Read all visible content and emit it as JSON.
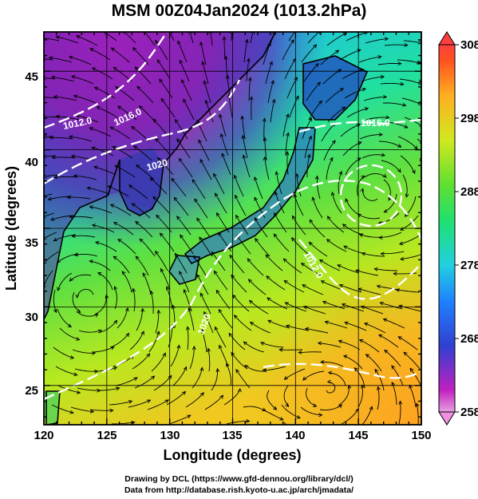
{
  "title": "MSM 00Z04Jan2024 (1013.2hPa)",
  "map": {
    "xlabel": "Longitude (degrees)",
    "ylabel": "Latitude  (degrees)",
    "xlim": [
      120,
      150
    ],
    "ylim": [
      22.5,
      47.5
    ],
    "xticks": [
      "120",
      "125",
      "130",
      "135",
      "140",
      "145",
      "150"
    ],
    "yticks": [
      "25",
      "30",
      "35",
      "40",
      "45"
    ],
    "contour_labels": [
      "1012.0",
      "1016.0",
      "1020",
      "1016.0",
      "1012.0",
      "1020"
    ]
  },
  "colorbar": {
    "ticks": [
      "308",
      "298",
      "288",
      "278",
      "268",
      "258"
    ],
    "min": 258,
    "max": 308
  },
  "credits": {
    "line1": "Drawing by DCL (https://www.gfd-dennou.org/library/dcl/)",
    "line2": "Data from http://database.rish.kyoto-u.ac.jp/arch/jmadata/"
  }
}
